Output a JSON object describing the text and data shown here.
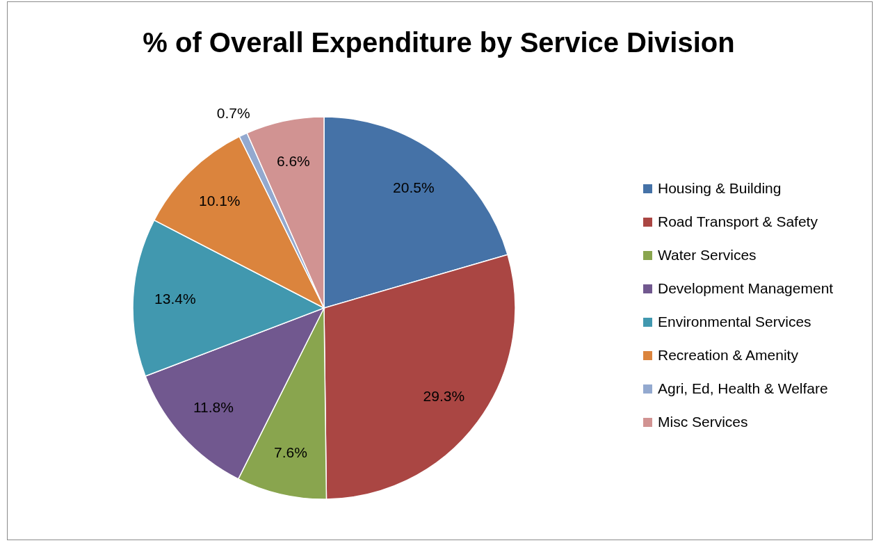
{
  "chart_data": {
    "type": "pie",
    "title": "% of Overall Expenditure by Service Division",
    "categories": [
      "Housing & Building",
      "Road Transport & Safety",
      "Water Services",
      "Development Management",
      "Environmental Services",
      "Recreation & Amenity",
      "Agri, Ed, Health & Welfare",
      "Misc Services"
    ],
    "values": [
      20.5,
      29.3,
      7.6,
      11.8,
      13.4,
      10.1,
      0.7,
      6.6
    ],
    "value_labels": [
      "20.5%",
      "29.3%",
      "7.6%",
      "11.8%",
      "13.4%",
      "10.1%",
      "0.7%",
      "6.6%"
    ],
    "colors": [
      "#4572a7",
      "#aa4643",
      "#89a54e",
      "#71588f",
      "#4198af",
      "#db843d",
      "#93a9cf",
      "#d19392"
    ],
    "legend": "right"
  }
}
